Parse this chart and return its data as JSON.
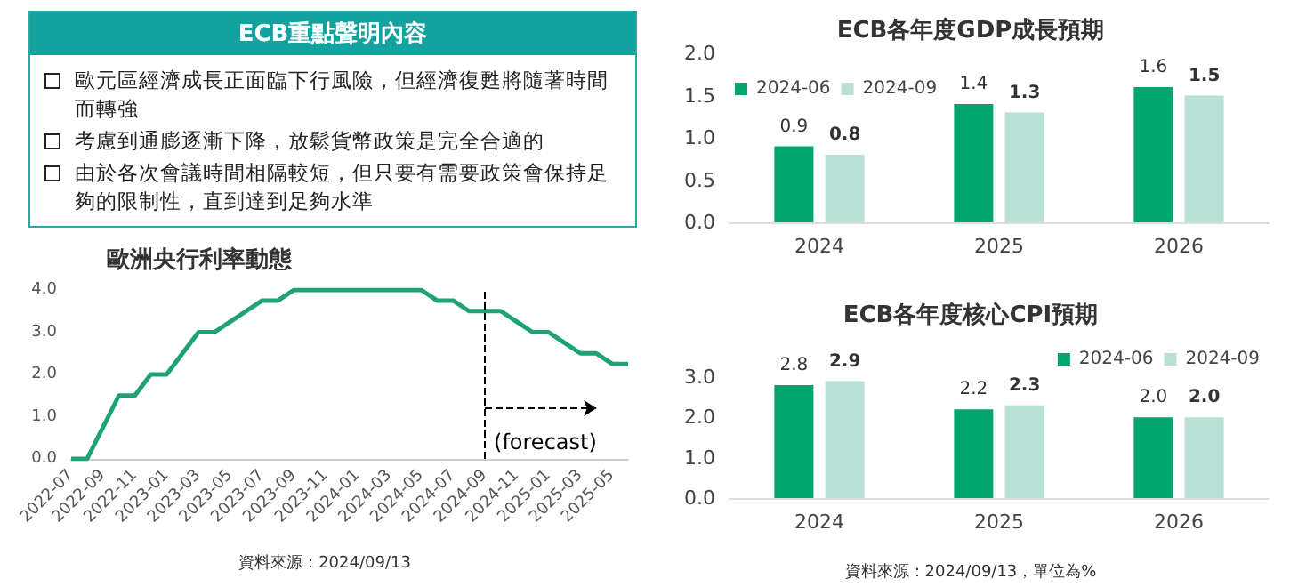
{
  "chart_data": [
    {
      "type": "other",
      "title": "ECB重點聲明內容",
      "annotations": [
        "歐元區經濟成長正面臨下行風險，但經濟復甦將隨著時間而轉強",
        "考慮到通膨逐漸下降，放鬆貨幣政策是完全合適的",
        "由於各次會議時間相隔較短，但只要有需要政策會保持足夠的限制性，直到達到足夠水準"
      ]
    },
    {
      "type": "line",
      "title": "歐洲央行利率動態",
      "categories": [
        "2022-07",
        null,
        "2022-09",
        null,
        "2022-11",
        null,
        "2023-01",
        null,
        "2023-03",
        null,
        "2023-05",
        null,
        "2023-07",
        null,
        "2023-09",
        null,
        "2023-11",
        null,
        "2024-01",
        null,
        "2024-03",
        null,
        "2024-05",
        null,
        "2024-07",
        null,
        "2024-09",
        null,
        "2024-11",
        null,
        "2025-01",
        null,
        "2025-03",
        null,
        "2025-05",
        null
      ],
      "series": [
        {
          "color": "#1fa374",
          "values": [
            0,
            0,
            0.75,
            1.5,
            1.5,
            2.0,
            2.0,
            2.5,
            3.0,
            3.0,
            3.25,
            3.5,
            3.75,
            3.75,
            4.0,
            4.0,
            4.0,
            4.0,
            4.0,
            4.0,
            4.0,
            4.0,
            4.0,
            3.75,
            3.75,
            3.5,
            3.5,
            3.5,
            3.25,
            3.0,
            3.0,
            2.75,
            2.5,
            2.5,
            2.25,
            2.25
          ]
        }
      ],
      "ylim": [
        0,
        4
      ],
      "yticks": [
        {
          "value": 0,
          "label": "0.0"
        },
        {
          "value": 1,
          "label": "1.0"
        },
        {
          "value": 2,
          "label": "2.0"
        },
        {
          "value": 3,
          "label": "3.0"
        },
        {
          "value": 4,
          "label": "4.0"
        }
      ],
      "ref_lines": [
        {
          "axis": "x",
          "value": "2024-09",
          "line_style": "dashed",
          "color": "#000000"
        }
      ],
      "annotations": [
        {
          "text": "(forecast)",
          "x": "2024-09",
          "y": 0.4
        },
        "資料來源：2024/09/13"
      ],
      "grid": false,
      "marker": "none",
      "line_style": "solid",
      "legend": false
    },
    {
      "type": "bar",
      "title": "ECB各年度GDP成長預期",
      "categories": [
        "2024",
        "2025",
        "2026"
      ],
      "series": [
        {
          "name": "2024-06",
          "color": "#00a66e",
          "values": [
            0.9,
            1.4,
            1.6
          ],
          "value_labels": [
            "0.9",
            "1.4",
            "1.6"
          ]
        },
        {
          "name": "2024-09",
          "color": "#b8e0d5",
          "values": [
            0.8,
            1.3,
            1.5
          ],
          "value_labels": [
            "0.8",
            "1.3",
            "1.5"
          ]
        }
      ],
      "ylim": [
        0,
        2
      ],
      "yticks": [
        {
          "value": 0,
          "label": "0.0"
        },
        {
          "value": 0.5,
          "label": "0.5"
        },
        {
          "value": 1,
          "label": "1.0"
        },
        {
          "value": 1.5,
          "label": "1.5"
        },
        {
          "value": 2,
          "label": "2.0"
        }
      ],
      "grid": false,
      "legend": "top left"
    },
    {
      "type": "bar",
      "title": "ECB各年度核心CPI預期",
      "categories": [
        "2024",
        "2025",
        "2026"
      ],
      "series": [
        {
          "name": "2024-06",
          "color": "#00a66e",
          "values": [
            2.8,
            2.2,
            2.0
          ],
          "value_labels": [
            "2.8",
            "2.2",
            "2.0"
          ]
        },
        {
          "name": "2024-09",
          "color": "#b8e0d5",
          "values": [
            2.9,
            2.3,
            2.0
          ],
          "value_labels": [
            "2.9",
            "2.3",
            "2.0"
          ]
        }
      ],
      "ylim": [
        0,
        3
      ],
      "yticks": [
        {
          "value": 0,
          "label": "0.0"
        },
        {
          "value": 1,
          "label": "1.0"
        },
        {
          "value": 2,
          "label": "2.0"
        },
        {
          "value": 3,
          "label": "3.0"
        }
      ],
      "grid": false,
      "legend": "top right",
      "annotations": [
        "資料來源：2024/09/13，單位為%"
      ]
    }
  ]
}
